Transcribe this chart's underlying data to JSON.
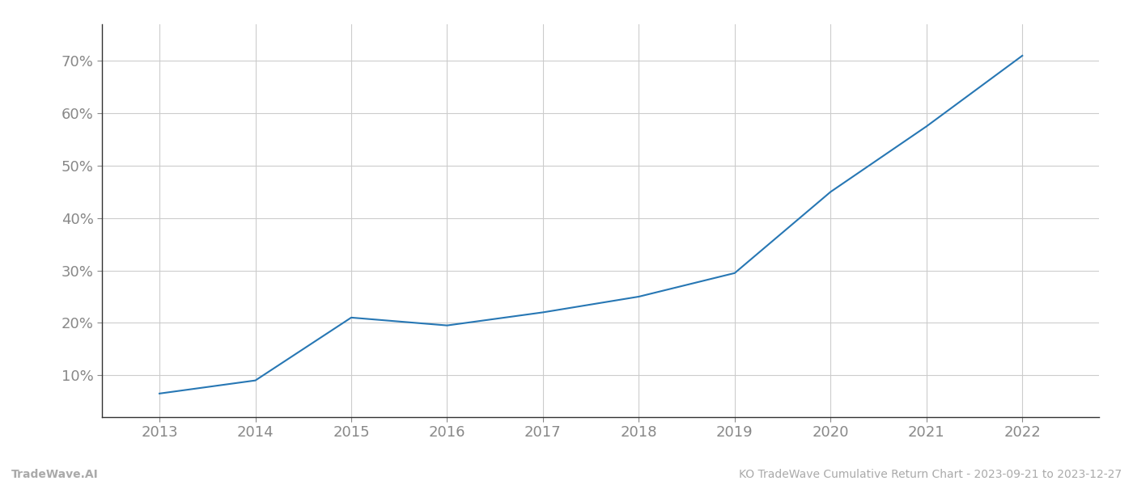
{
  "x_years": [
    2013,
    2014,
    2015,
    2016,
    2017,
    2018,
    2019,
    2020,
    2021,
    2022
  ],
  "y_values": [
    6.5,
    9.0,
    21.0,
    19.5,
    22.0,
    25.0,
    29.5,
    45.0,
    57.5,
    71.0
  ],
  "line_color": "#2777b4",
  "line_width": 1.5,
  "background_color": "#ffffff",
  "grid_color": "#cccccc",
  "yticks": [
    10,
    20,
    30,
    40,
    50,
    60,
    70
  ],
  "ylim": [
    2,
    77
  ],
  "xlim": [
    2012.4,
    2022.8
  ],
  "footer_left": "TradeWave.AI",
  "footer_right": "KO TradeWave Cumulative Return Chart - 2023-09-21 to 2023-12-27",
  "footer_color": "#aaaaaa",
  "footer_fontsize": 10,
  "axis_label_color": "#888888",
  "tick_label_fontsize": 13
}
